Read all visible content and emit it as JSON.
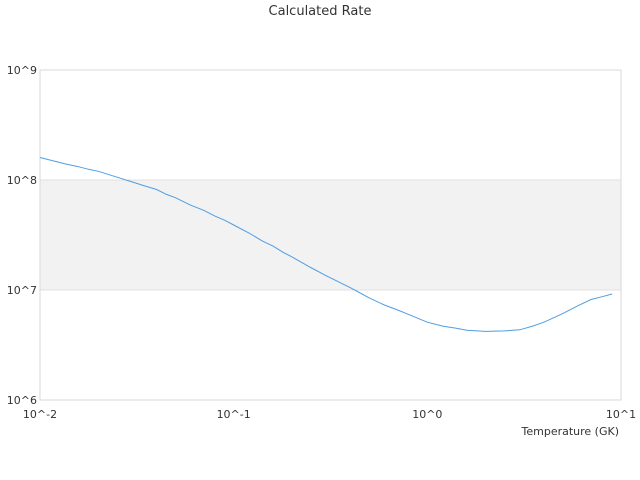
{
  "chart_data": {
    "type": "line",
    "title": "Calculated Rate",
    "xlabel": "Temperature (GK)",
    "ylabel": "",
    "x_scale": "log",
    "y_scale": "log",
    "xlim": [
      0.01,
      10
    ],
    "ylim": [
      1000000,
      1000000000
    ],
    "x_ticks": [
      {
        "value": 0.01,
        "label": "10^-2"
      },
      {
        "value": 0.1,
        "label": "10^-1"
      },
      {
        "value": 1,
        "label": "10^0"
      },
      {
        "value": 10,
        "label": "10^1"
      }
    ],
    "y_ticks": [
      {
        "value": 1000000,
        "label": "10^6"
      },
      {
        "value": 10000000,
        "label": "10^7"
      },
      {
        "value": 100000000,
        "label": "10^8"
      },
      {
        "value": 1000000000,
        "label": "10^9"
      }
    ],
    "alternating_bands": true,
    "grid": false,
    "series": [
      {
        "color": "#4f9de3",
        "x": [
          0.01,
          0.0135,
          0.0158,
          0.0178,
          0.02,
          0.025,
          0.03,
          0.035,
          0.04,
          0.045,
          0.05,
          0.06,
          0.07,
          0.08,
          0.09,
          0.1,
          0.12,
          0.14,
          0.16,
          0.18,
          0.2,
          0.25,
          0.3,
          0.35,
          0.4,
          0.45,
          0.5,
          0.6,
          0.7,
          0.8,
          0.9,
          1.0,
          1.2,
          1.4,
          1.6,
          1.8,
          2.0,
          2.5,
          3.0,
          3.5,
          4.0,
          4.5,
          5.0,
          6.0,
          7.0,
          8.0,
          9.0
        ],
        "y": [
          160000000,
          140000000,
          132000000,
          125000000,
          120000000,
          106000000,
          96000000,
          88000000,
          82000000,
          74000000,
          69000000,
          59000000,
          53000000,
          47000000,
          43000000,
          39000000,
          33000000,
          28000000,
          25000000,
          22000000,
          20000000,
          16000000,
          13500000,
          11800000,
          10500000,
          9400000,
          8500000,
          7300000,
          6600000,
          6000000,
          5500000,
          5100000,
          4700000,
          4500000,
          4300000,
          4250000,
          4200000,
          4250000,
          4350000,
          4700000,
          5100000,
          5600000,
          6100000,
          7200000,
          8200000,
          8700000,
          9200000
        ]
      }
    ]
  }
}
